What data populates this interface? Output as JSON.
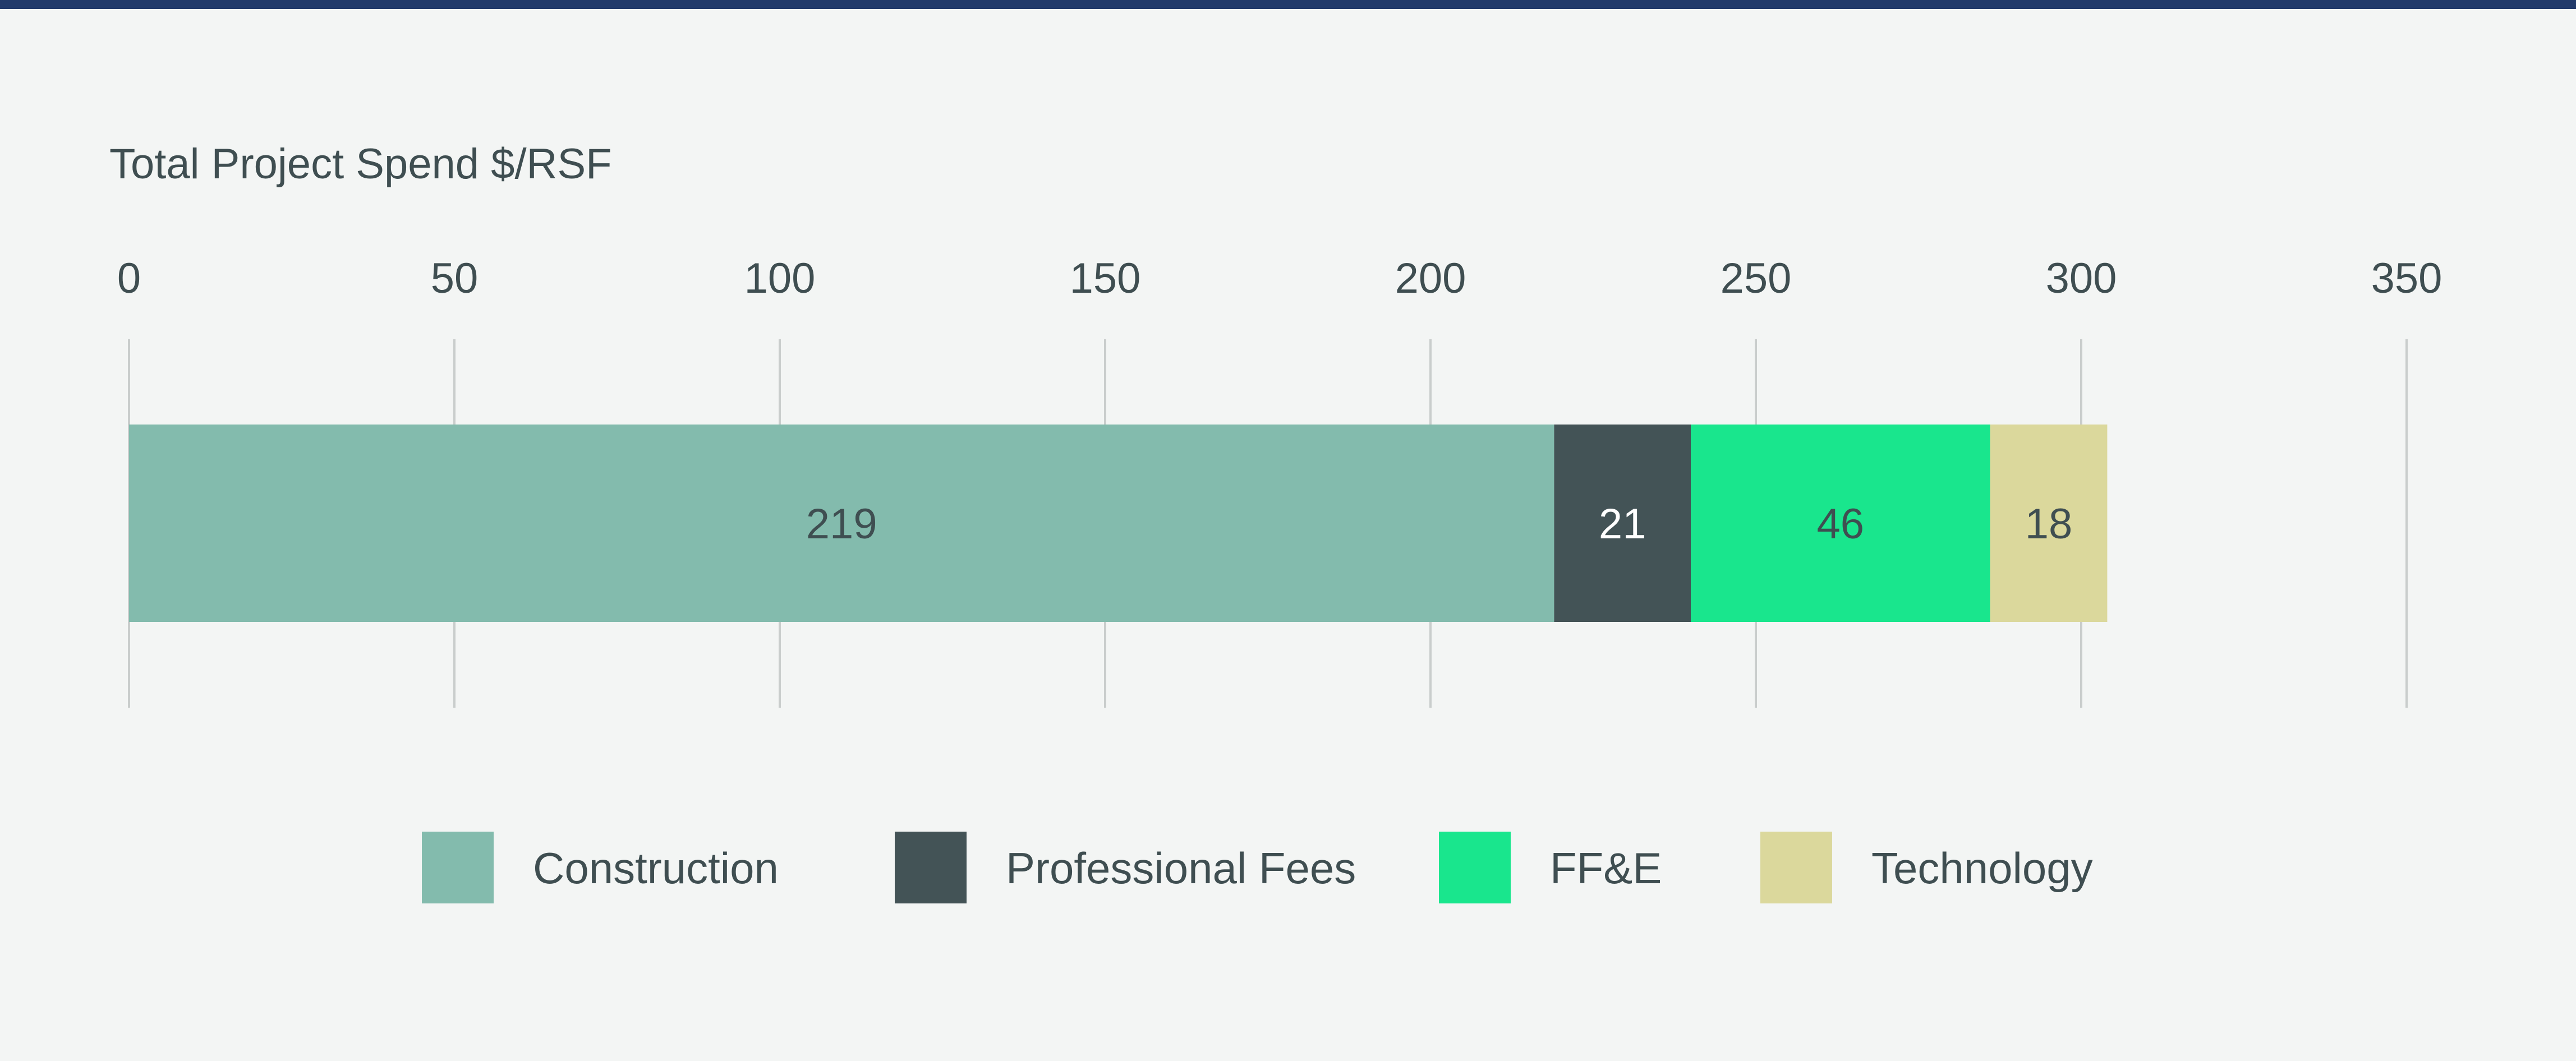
{
  "chart_data": {
    "type": "bar",
    "orientation": "horizontal",
    "stacked": true,
    "title": "Total Project Spend $/RSF",
    "xlim": [
      0,
      350
    ],
    "x_ticks": [
      0,
      50,
      100,
      150,
      200,
      250,
      300,
      350
    ],
    "grid": true,
    "legend_position": "bottom",
    "series": [
      {
        "name": "Construction",
        "value": 219,
        "color": "#83bbad",
        "label_color": "#3f4e51"
      },
      {
        "name": "Professional Fees",
        "value": 21,
        "color": "#435356",
        "label_color": "#ffffff"
      },
      {
        "name": "FF&E",
        "value": 46,
        "color": "#19e68d",
        "label_color": "#3f4e51"
      },
      {
        "name": "Technology",
        "value": 18,
        "color": "#dbd89c",
        "label_color": "#3f4e51"
      }
    ]
  },
  "colors": {
    "background": "#f3f5f4",
    "top_rule": "#223a6b",
    "grid": "#c9cdcc",
    "text": "#3f4e51"
  }
}
